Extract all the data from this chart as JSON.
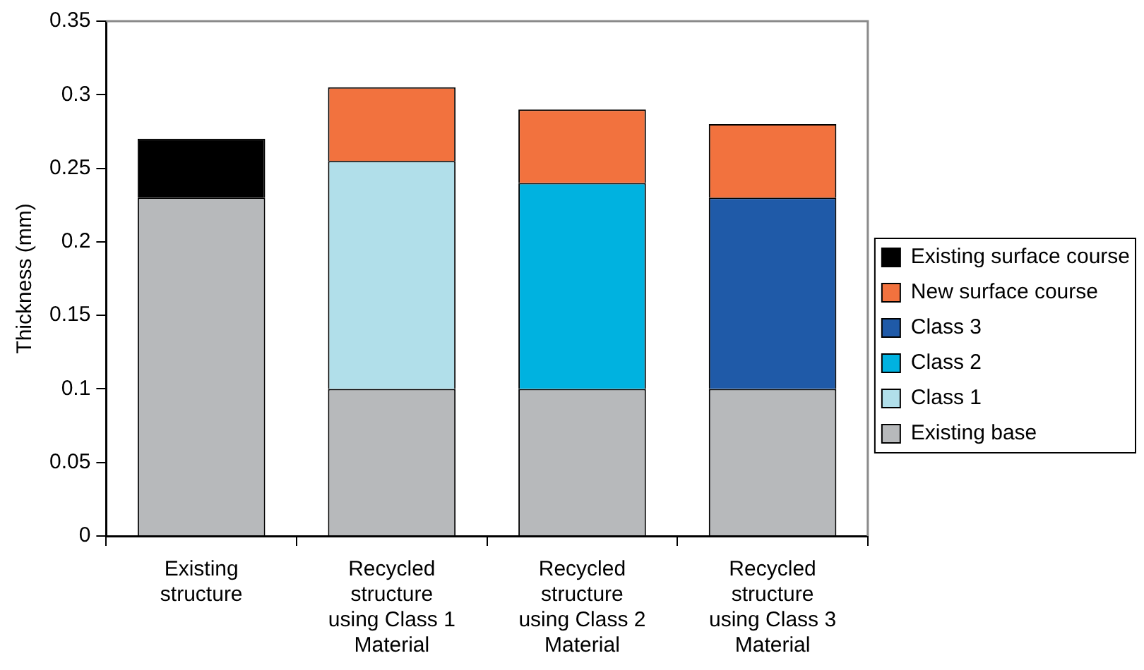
{
  "chart_data": {
    "type": "bar",
    "stacked": true,
    "ylabel": "Thickness (mm)",
    "categories": [
      "Existing structure",
      "Recycled structure using Class 1 Material",
      "Recycled structure using Class 2 Material",
      "Recycled structure using Class 3 Material"
    ],
    "series": [
      {
        "name": "Existing base",
        "color": "#b7b9bb",
        "values": [
          0.23,
          0.1,
          0.1,
          0.1
        ]
      },
      {
        "name": "Class 1",
        "color": "#b1dfea",
        "values": [
          null,
          0.155,
          null,
          null
        ]
      },
      {
        "name": "Class 2",
        "color": "#00b2e0",
        "values": [
          null,
          null,
          0.14,
          null
        ]
      },
      {
        "name": "Class 3",
        "color": "#1f5aa8",
        "values": [
          null,
          null,
          null,
          0.13
        ]
      },
      {
        "name": "New surface course",
        "color": "#f2723e",
        "values": [
          null,
          0.05,
          0.05,
          0.05
        ]
      },
      {
        "name": "Existing surface course",
        "color": "#000000",
        "values": [
          0.04,
          null,
          null,
          null
        ]
      }
    ],
    "ylim": [
      0,
      0.35
    ],
    "yticks": [
      0,
      0.05,
      0.1,
      0.15,
      0.2,
      0.25,
      0.3,
      0.35
    ],
    "grid": false,
    "legend": "right"
  }
}
